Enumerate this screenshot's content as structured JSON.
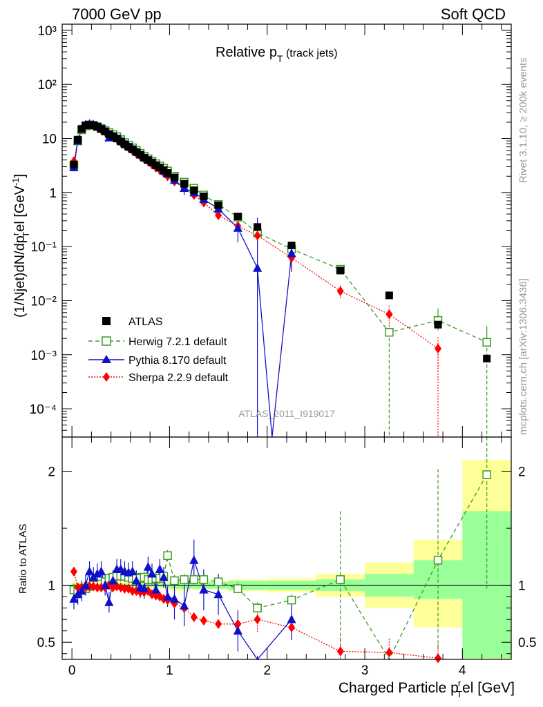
{
  "header": {
    "left": "7000 GeV pp",
    "right": "Soft QCD"
  },
  "side": {
    "rivet": "Rivet 3.1.10, ≥ 200k events",
    "mcplots": "mcplots.cern.ch [arXiv:1306.3436]"
  },
  "chart_data": {
    "type": "scatter",
    "title": "Relative p",
    "title_sub": "T",
    "title_suffix": " (track jets)",
    "analysis_tag": "ATLAS_2011_I919017",
    "ylabel": "(1/Njet)dN/dp",
    "ylabel_sub": "T",
    "ylabel_sup": "r",
    "ylabel_tail": "el [GeV",
    "ylabel_unit_sup": "-1",
    "ylabel_close": "]",
    "xlabel": "Charged Particle p",
    "xlabel_sub": "T",
    "xlabel_sup": "r",
    "xlabel_tail": "el [GeV]",
    "ratio_ylabel": "Ratio to ATLAS",
    "xlim": [
      -0.1,
      4.5
    ],
    "ylim_log": [
      3e-05,
      1300
    ],
    "ratio_ylim": [
      0.35,
      2.3
    ],
    "x_ticks": [
      "0",
      "1",
      "2",
      "3",
      "4"
    ],
    "y_ticks": [
      "10⁻⁴",
      "10⁻³",
      "10⁻²",
      "10⁻¹",
      "1",
      "10",
      "10²",
      "10³"
    ],
    "ratio_ticks": [
      "0.5",
      "1",
      "2"
    ],
    "legend": [
      "ATLAS",
      "Herwig 7.2.1 default",
      "Pythia 8.170 default",
      "Sherpa 2.2.9 default"
    ],
    "colors": {
      "data": "#000000",
      "herwig": "#3a9a1e",
      "pythia": "#1010cc",
      "sherpa": "#ff0000",
      "band_yellow": "#ffff99",
      "band_green": "#99ff99"
    },
    "data": {
      "x": [
        0.02,
        0.06,
        0.1,
        0.14,
        0.18,
        0.22,
        0.26,
        0.3,
        0.34,
        0.38,
        0.42,
        0.46,
        0.5,
        0.54,
        0.58,
        0.62,
        0.66,
        0.7,
        0.74,
        0.78,
        0.82,
        0.86,
        0.9,
        0.94,
        0.98,
        1.05,
        1.15,
        1.25,
        1.35,
        1.5,
        1.7,
        1.9,
        2.25,
        2.75,
        3.25,
        3.75,
        4.25
      ],
      "y": [
        3.3,
        9.5,
        15,
        17.5,
        18,
        17.5,
        16.5,
        15,
        13.5,
        12,
        11,
        10,
        8.8,
        7.8,
        7,
        6.3,
        5.6,
        5,
        4.4,
        4,
        3.6,
        3.2,
        2.9,
        2.6,
        2.3,
        1.9,
        1.45,
        1.1,
        0.85,
        0.58,
        0.36,
        0.23,
        0.105,
        0.036,
        0.0125,
        0.0036,
        0.00085
      ]
    },
    "herwig": {
      "y": [
        3.2,
        9.0,
        14.5,
        17.0,
        17.8,
        17.5,
        16.5,
        15.2,
        14,
        12.8,
        11.8,
        10.8,
        9.5,
        8.4,
        7.5,
        6.7,
        6.0,
        5.3,
        4.7,
        4.2,
        3.8,
        3.4,
        3.1,
        2.8,
        2.5,
        2.0,
        1.55,
        1.2,
        0.9,
        0.6,
        0.35,
        0.18,
        0.09,
        0.038,
        0.0026,
        0.0043,
        0.0017
      ]
    },
    "pythia": {
      "y": [
        2.9,
        9.0,
        15,
        18,
        18.5,
        18,
        17,
        15.5,
        14,
        10.3,
        11.2,
        10.3,
        9.2,
        8.1,
        7.3,
        6.5,
        5.8,
        5.1,
        4.5,
        4.0,
        3.6,
        3.2,
        2.9,
        2.5,
        2.2,
        1.7,
        1.2,
        1.0,
        0.75,
        0.5,
        0.22,
        0.04,
        0.075
      ],
      "yerr": [
        0.35,
        1,
        1.2,
        1.5,
        1.5,
        1.5,
        1.4,
        1.3,
        1.2,
        1,
        1,
        0.9,
        0.8,
        0.7,
        0.6,
        0.55,
        0.5,
        0.45,
        0.4,
        0.35,
        0.3,
        0.28,
        0.25,
        0.22,
        0.2,
        0.18,
        0.3,
        0.2,
        0.15,
        0.1,
        0.1,
        0.3,
        0.04
      ]
    },
    "sherpa": {
      "y": [
        3.8,
        9.3,
        15,
        17.2,
        17.8,
        17.3,
        16.2,
        14.7,
        13.2,
        12,
        10.8,
        9.9,
        8.6,
        7.6,
        6.8,
        6.0,
        5.3,
        4.7,
        4.2,
        3.8,
        3.3,
        2.9,
        2.6,
        2.3,
        2.0,
        1.6,
        1.2,
        0.9,
        0.65,
        0.38,
        0.24,
        0.16,
        0.062,
        0.015,
        0.0056,
        0.0013
      ],
      "yerr": [
        0.3,
        0.6,
        0.8,
        1,
        1,
        1,
        1,
        0.9,
        0.8,
        0.7,
        0.7,
        0.6,
        0.5,
        0.5,
        0.4,
        0.4,
        0.35,
        0.3,
        0.3,
        0.25,
        0.25,
        0.2,
        0.2,
        0.18,
        0.15,
        0.12,
        0.1,
        0.08,
        0.06,
        0.04,
        0.04,
        0.03,
        0.03,
        0.004,
        0.0025,
        0.0008
      ]
    },
    "ratio": {
      "herwig": [
        0.96,
        0.95,
        0.97,
        0.97,
        0.99,
        1.0,
        1.0,
        1.01,
        1.03,
        1.06,
        1.07,
        1.08,
        1.08,
        1.08,
        1.07,
        1.06,
        1.07,
        1.06,
        1.07,
        1.05,
        1.05,
        1.06,
        1.06,
        1.08,
        1.26,
        1.04,
        1.05,
        1.05,
        1.05,
        1.03,
        0.97,
        0.8,
        0.87,
        1.05,
        0.21,
        1.22,
        1.97
      ],
      "pythia": [
        0.88,
        0.92,
        0.95,
        1.0,
        1.12,
        1.07,
        1.1,
        1.12,
        1.0,
        0.85,
        1.04,
        1.14,
        1.14,
        1.12,
        1.11,
        1.12,
        1.04,
        0.98,
        0.97,
        1.16,
        1.1,
        0.96,
        1.14,
        1.07,
        0.9,
        0.88,
        0.82,
        1.22,
        0.96,
        0.92,
        0.6,
        0.2,
        0.7
      ],
      "sherpa": [
        1.12,
        0.98,
        0.98,
        0.98,
        0.99,
        0.99,
        0.98,
        0.98,
        0.98,
        1.0,
        0.98,
        0.99,
        0.98,
        0.97,
        0.97,
        0.95,
        0.95,
        0.94,
        0.94,
        0.95,
        0.92,
        0.91,
        0.9,
        0.88,
        0.87,
        0.84,
        0.8,
        0.72,
        0.69,
        0.66,
        0.66,
        0.7,
        0.63,
        0.42,
        0.41,
        0.36
      ],
      "yellow_bands": [
        [
          0.0,
          1.0,
          0.97,
          1.03
        ],
        [
          1.0,
          1.2,
          0.95,
          1.05
        ],
        [
          1.2,
          1.6,
          0.96,
          1.04
        ],
        [
          1.6,
          2.0,
          0.95,
          1.05
        ],
        [
          2.0,
          2.5,
          0.94,
          1.06
        ],
        [
          2.5,
          3.0,
          0.9,
          1.1
        ],
        [
          3.0,
          3.5,
          0.8,
          1.2
        ],
        [
          3.5,
          4.0,
          0.63,
          1.4
        ],
        [
          4.0,
          4.5,
          0.35,
          2.1
        ]
      ],
      "green_bands": [
        [
          0.0,
          1.0,
          0.985,
          1.015
        ],
        [
          1.0,
          1.6,
          0.97,
          1.03
        ],
        [
          1.6,
          2.0,
          0.96,
          1.04
        ],
        [
          2.0,
          2.5,
          0.96,
          1.04
        ],
        [
          2.5,
          3.0,
          0.95,
          1.05
        ],
        [
          3.0,
          3.5,
          0.9,
          1.1
        ],
        [
          3.5,
          4.0,
          0.88,
          1.22
        ],
        [
          4.0,
          4.5,
          0.36,
          1.65
        ]
      ]
    }
  }
}
